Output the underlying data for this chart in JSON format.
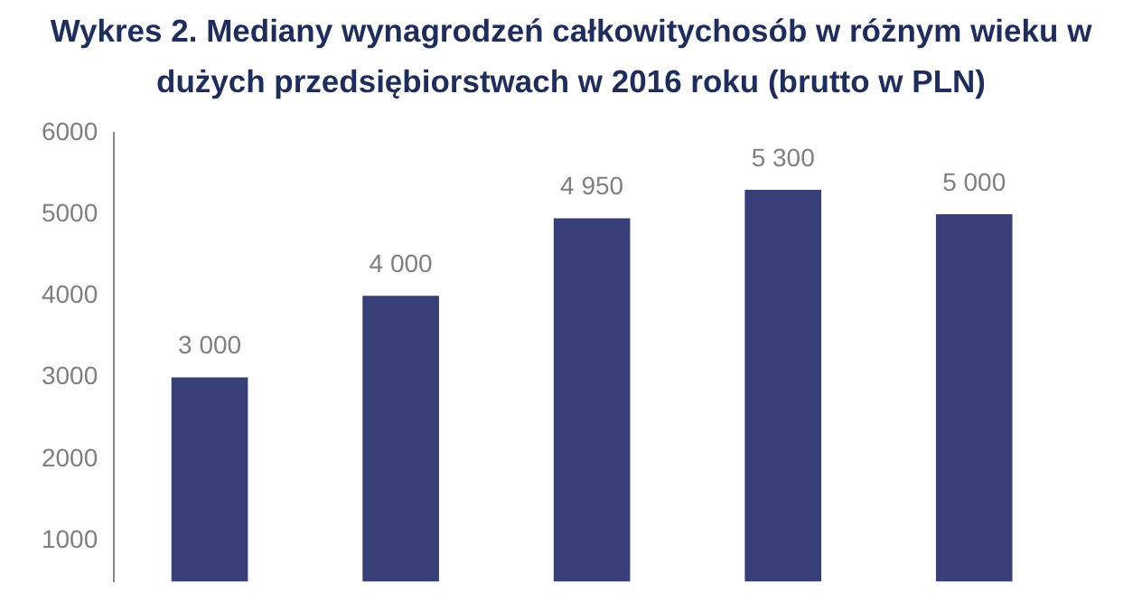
{
  "chart_data": {
    "type": "bar",
    "title": "Wykres 2. Mediany wynagrodzeń całkowitychosób w różnym wieku w dużych przedsiębiorstwach w 2016 roku (brutto w PLN)",
    "categories": [
      null,
      null,
      null,
      null,
      null
    ],
    "values": [
      3000,
      4000,
      4950,
      5300,
      5000
    ],
    "value_labels": [
      "3 000",
      "4 000",
      "4 950",
      "5 300",
      "5 000"
    ],
    "color": "#383f78",
    "ylim": [
      500,
      6000
    ],
    "yticks": [
      1000,
      2000,
      3000,
      4000,
      5000,
      6000
    ],
    "grid": false,
    "legend": false
  }
}
